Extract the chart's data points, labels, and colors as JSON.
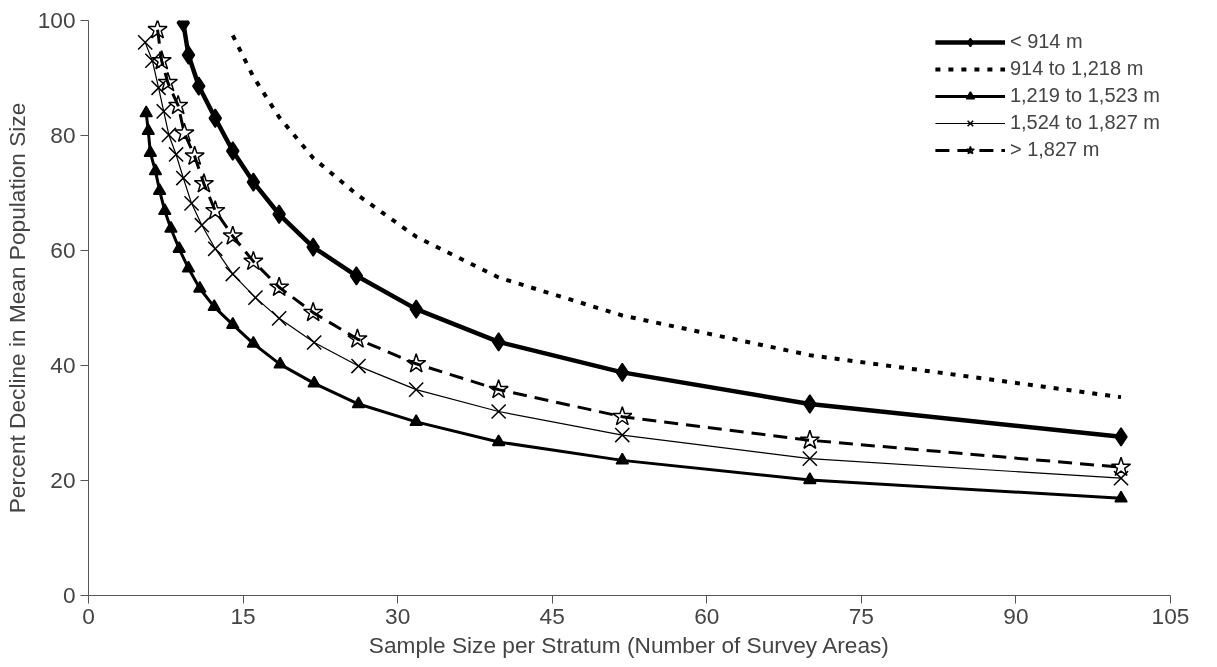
{
  "chart_data": {
    "type": "line",
    "xlabel": "Sample Size per Stratum (Number of Survey Areas)",
    "ylabel": "Percent Decline in Mean Population Size",
    "xlim": [
      0,
      105
    ],
    "xticks": [
      0,
      15,
      30,
      45,
      60,
      75,
      90,
      105
    ],
    "ylim": [
      0,
      100
    ],
    "yticks": [
      0,
      20,
      40,
      60,
      80,
      100
    ],
    "grid": false,
    "legend": "top right",
    "series": [
      {
        "name": "< 914 m",
        "color": "#000000",
        "marker": "diamond",
        "line_style": "solid",
        "x": [
          9.2,
          9.7,
          10.7,
          12.3,
          14,
          16,
          18.5,
          21.8,
          26,
          31.8,
          39.8,
          51.8,
          70,
          100.2
        ],
        "values": [
          99.6,
          94.0,
          88.6,
          83.0,
          77.3,
          71.9,
          66.3,
          60.6,
          55.6,
          49.8,
          44.1,
          38.8,
          33.3,
          27.6
        ]
      },
      {
        "name": "914 to 1,218 m",
        "color": "#000000",
        "marker": "none",
        "line_style": "dotted",
        "x": [
          14,
          16,
          18.5,
          21.8,
          26,
          31.8,
          39.8,
          51.8,
          70,
          100.2
        ],
        "values": [
          97.4,
          90.2,
          83.2,
          76.1,
          69.8,
          62.4,
          55.3,
          48.7,
          41.8,
          34.5
        ]
      },
      {
        "name": "1,219 to 1,523 m",
        "color": "#000000",
        "marker": "triangle",
        "line_style": "solid",
        "x": [
          5.6,
          5.8,
          6.0,
          6.5,
          6.9,
          7.4,
          8.0,
          8.8,
          9.7,
          10.8,
          12.2,
          14,
          16,
          18.6,
          21.9,
          26.2,
          31.8,
          39.8,
          51.8,
          70,
          100.2
        ],
        "values": [
          83.9,
          80.8,
          77.0,
          73.8,
          70.4,
          66.9,
          63.8,
          60.3,
          56.9,
          53.4,
          50.2,
          47.1,
          43.8,
          40.2,
          36.9,
          33.3,
          30.2,
          26.7,
          23.5,
          20.1,
          16.9
        ]
      },
      {
        "name": "1,524 to 1,827 m",
        "color": "#000000",
        "marker": "cross",
        "line_style": "solid",
        "x": [
          5.5,
          6.2,
          6.8,
          7.3,
          7.8,
          8.5,
          9.2,
          10.0,
          11.0,
          12.3,
          14,
          16.2,
          18.5,
          21.9,
          26.2,
          31.8,
          39.8,
          51.8,
          70,
          100.2
        ],
        "values": [
          96.2,
          93.0,
          88.3,
          84.2,
          80.1,
          76.7,
          72.6,
          68.2,
          64.4,
          60.3,
          55.9,
          51.8,
          48.2,
          44.0,
          39.9,
          35.8,
          32.0,
          27.9,
          23.8,
          20.4
        ]
      },
      {
        "name": "> 1,827 m",
        "color": "#000000",
        "marker": "star",
        "line_style": "dashed",
        "x": [
          6.7,
          7.1,
          7.7,
          8.7,
          9.3,
          10.3,
          11.2,
          12.3,
          14,
          16,
          18.5,
          21.8,
          26.1,
          31.8,
          39.8,
          51.8,
          70,
          100.2
        ],
        "values": [
          98.4,
          93.0,
          89.2,
          85.2,
          80.4,
          76.4,
          71.6,
          66.9,
          62.5,
          58.1,
          53.6,
          49.2,
          44.6,
          40.3,
          35.8,
          31.1,
          27.0,
          22.3
        ]
      }
    ]
  }
}
